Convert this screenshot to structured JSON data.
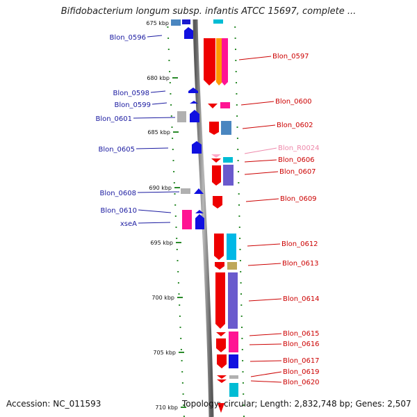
{
  "title": "Bifidobacterium longum subsp. infantis ATCC 15697, complete ...",
  "footer": {
    "accession": "Accession: NC_011593",
    "topology": "Topology: circular; Length: 2,832,748 bp; Genes: 2,507"
  },
  "colors": {
    "backbone": "#8a8a8a",
    "left_label": "#1a1aa0",
    "right_label": "#cc0000",
    "rna_label": "#ee88aa",
    "tick": "#2a8a2a"
  },
  "scale_ticks": [
    {
      "label": "675 kbp"
    },
    {
      "label": "680 kbp"
    },
    {
      "label": "685 kbp"
    },
    {
      "label": "690 kbp"
    },
    {
      "label": "695 kbp"
    },
    {
      "label": "700 kbp"
    },
    {
      "label": "705 kbp"
    },
    {
      "label": "710 kbp"
    }
  ],
  "left_labels": [
    {
      "text": "Blon_0596"
    },
    {
      "text": "Blon_0598"
    },
    {
      "text": "Blon_0599"
    },
    {
      "text": "Blon_0601"
    },
    {
      "text": "Blon_0605"
    },
    {
      "text": "Blon_0608"
    },
    {
      "text": "Blon_0610"
    },
    {
      "text": "xseA"
    }
  ],
  "right_labels": [
    {
      "text": "Blon_0597"
    },
    {
      "text": "Blon_0600"
    },
    {
      "text": "Blon_0602"
    },
    {
      "text": "Blon_R0024"
    },
    {
      "text": "Blon_0606"
    },
    {
      "text": "Blon_0607"
    },
    {
      "text": "Blon_0609"
    },
    {
      "text": "Blon_0612"
    },
    {
      "text": "Blon_0613"
    },
    {
      "text": "Blon_0614"
    },
    {
      "text": "Blon_0615"
    },
    {
      "text": "Blon_0616"
    },
    {
      "text": "Blon_0617"
    },
    {
      "text": "Blon_0619"
    },
    {
      "text": "Blon_0620"
    }
  ]
}
